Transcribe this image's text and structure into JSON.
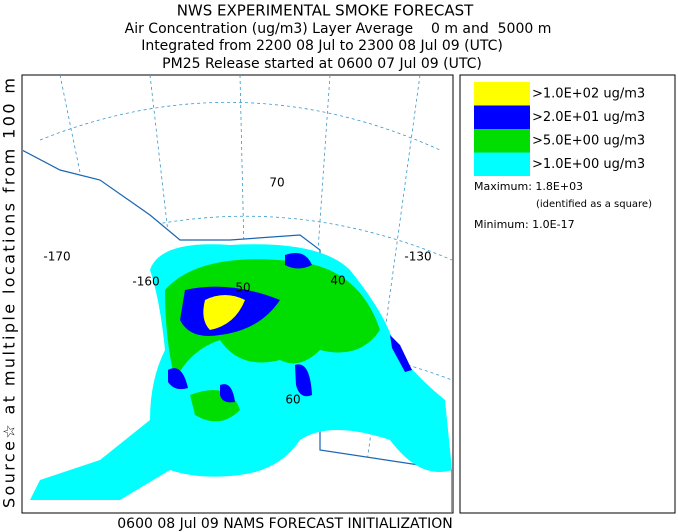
{
  "header": {
    "lines": [
      "NWS EXPERIMENTAL SMOKE FORECAST",
      "Air Concentration (ug/m3) Layer Average    0 m and  5000 m",
      "Integrated from 2200 08 Jul to 2300 08 Jul 09 (UTC)",
      "PM25 Release started at 0600 07 Jul 09 (UTC)"
    ]
  },
  "side_label": "Source☆ at multiple locations from 100 m",
  "footer": "0600 08 Jul 09 NAMS FORECAST INITIALIZATION",
  "legend": {
    "entries": [
      {
        "label": ">1.0E+02 ug/m3",
        "color": "#ffff00"
      },
      {
        "label": ">2.0E+01 ug/m3",
        "color": "#0000ff"
      },
      {
        "label": ">5.0E+00 ug/m3",
        "color": "#00dd00"
      },
      {
        "label": ">1.0E+00 ug/m3",
        "color": "#00ffff"
      }
    ],
    "maximum": "Maximum: 1.8E+03",
    "maximum_note": "(identified as a square)",
    "minimum": "Minimum: 1.0E-17"
  },
  "map": {
    "labels": [
      "-170",
      "-160",
      "50",
      "40",
      "-130",
      "70",
      "60"
    ]
  }
}
